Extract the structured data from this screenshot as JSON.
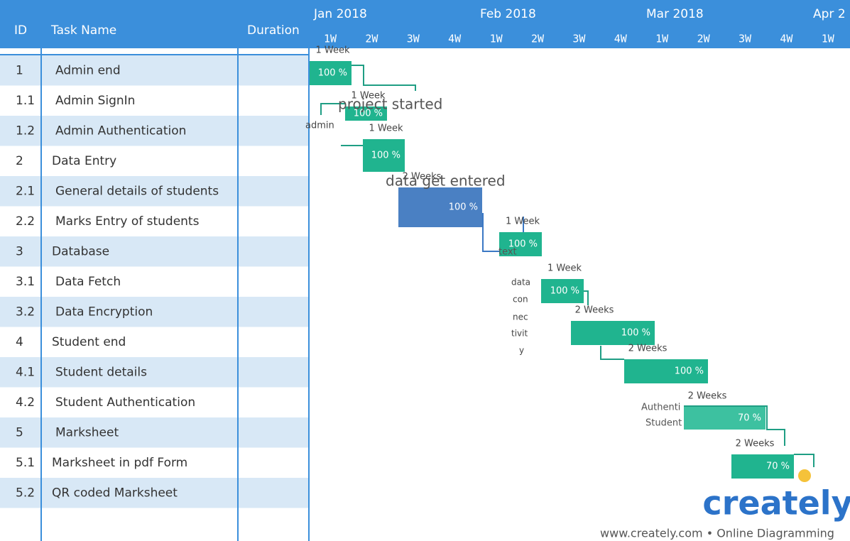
{
  "header": {
    "id": "ID",
    "task_name": "Task Name",
    "duration": "Duration",
    "months": [
      "Jan 2018",
      "Feb 2018",
      "Mar 2018",
      "Apr 2"
    ],
    "weeks": [
      "1W",
      "2W",
      "3W",
      "4W",
      "1W",
      "2W",
      "3W",
      "4W",
      "1W",
      "2W",
      "3W",
      "4W",
      "1W"
    ]
  },
  "tasks": [
    {
      "id": "1",
      "name": "Admin end"
    },
    {
      "id": "1.1",
      "name": "Admin SignIn"
    },
    {
      "id": "1.2",
      "name": "Admin Authentication"
    },
    {
      "id": "2",
      "name": "Data  Entry"
    },
    {
      "id": "2.1",
      "name": "General details of students"
    },
    {
      "id": "2.2",
      "name": "Marks Entry of students"
    },
    {
      "id": "3",
      "name": "Database"
    },
    {
      "id": "3.1",
      "name": "Data Fetch"
    },
    {
      "id": "3.2",
      "name": "Data Encryption"
    },
    {
      "id": "4",
      "name": "Student end"
    },
    {
      "id": "4.1",
      "name": "Student details"
    },
    {
      "id": "4.2",
      "name": "Student Authentication"
    },
    {
      "id": "5",
      "name": "Marksheet"
    },
    {
      "id": "5.1",
      "name": "Marksheet in pdf Form"
    },
    {
      "id": "5.2",
      "name": "QR coded Marksheet"
    }
  ],
  "bars": [
    {
      "duration": "1 Week",
      "progress": "100 %"
    },
    {
      "duration": "1 Week",
      "progress": "100 %"
    },
    {
      "duration": "1 Week",
      "progress": "100 %"
    },
    {
      "duration": "2 Weeks",
      "progress": "100 %"
    },
    {
      "duration": "1 Week",
      "progress": "100 %"
    },
    {
      "duration": "1 Week",
      "progress": "100 %"
    },
    {
      "duration": "2 Weeks",
      "progress": "100 %"
    },
    {
      "duration": "2 Weeks",
      "progress": "100 %"
    },
    {
      "duration": "2 Weeks",
      "progress": "70 %"
    },
    {
      "duration": "2 Weeks",
      "progress": "70 %"
    }
  ],
  "annotations": [
    "project started",
    "admin",
    "data get entered",
    "text",
    "data",
    "con",
    "nec",
    "tivit",
    "y",
    "Authenti",
    "Student"
  ],
  "branding": {
    "logo": "creately",
    "tagline": "www.creately.com • Online Diagramming"
  }
}
